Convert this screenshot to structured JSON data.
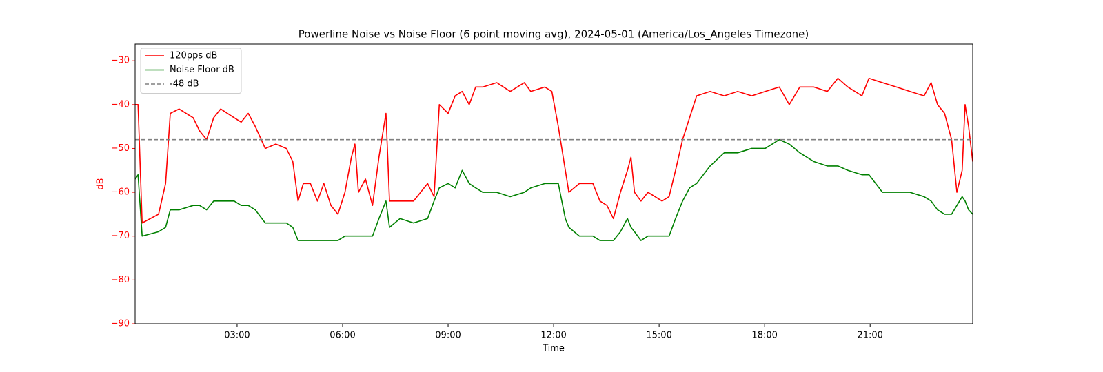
{
  "chart_data": {
    "type": "line",
    "title": "Powerline Noise vs Noise Floor (6 point moving avg), 2024-05-01 (America/Los_Angeles Timezone)",
    "x_label": "Time",
    "y_label": "dB",
    "x": [
      "00:06",
      "00:11",
      "00:18",
      "00:46",
      "00:58",
      "01:06",
      "01:21",
      "01:45",
      "01:56",
      "02:08",
      "02:20",
      "02:32",
      "02:55",
      "03:07",
      "03:19",
      "03:31",
      "03:48",
      "04:06",
      "04:24",
      "04:35",
      "04:44",
      "04:53",
      "05:05",
      "05:17",
      "05:28",
      "05:40",
      "05:52",
      "06:04",
      "06:15",
      "06:21",
      "06:27",
      "06:39",
      "06:51",
      "07:02",
      "07:14",
      "07:20",
      "07:38",
      "08:01",
      "08:25",
      "08:36",
      "08:45",
      "09:00",
      "09:12",
      "09:24",
      "09:36",
      "09:47",
      "09:59",
      "10:23",
      "10:46",
      "11:10",
      "11:21",
      "11:45",
      "11:57",
      "12:08",
      "12:20",
      "12:26",
      "12:44",
      "13:07",
      "13:19",
      "13:31",
      "13:42",
      "13:54",
      "14:06",
      "14:12",
      "14:18",
      "14:29",
      "14:41",
      "15:05",
      "15:17",
      "15:28",
      "15:40",
      "15:52",
      "16:04",
      "16:27",
      "16:51",
      "17:14",
      "17:38",
      "18:01",
      "18:25",
      "18:42",
      "19:00",
      "19:24",
      "19:47",
      "20:05",
      "20:22",
      "20:46",
      "20:58",
      "21:21",
      "21:45",
      "22:08",
      "22:32",
      "22:44",
      "22:55",
      "23:07",
      "23:19",
      "23:28",
      "23:37",
      "23:42",
      "23:48",
      "23:55"
    ],
    "series": [
      {
        "name": "120pps dB",
        "color": "#ff0000",
        "values": [
          -40,
          -40,
          -67,
          -65,
          -58,
          -42,
          -41,
          -43,
          -46,
          -48,
          -43,
          -41,
          -43,
          -44,
          -42,
          -45,
          -50,
          -49,
          -50,
          -53,
          -62,
          -58,
          -58,
          -62,
          -58,
          -63,
          -65,
          -60,
          -52,
          -49,
          -60,
          -57,
          -63,
          -52,
          -42,
          -62,
          -62,
          -62,
          -58,
          -61,
          -40,
          -42,
          -38,
          -37,
          -40,
          -36,
          -36,
          -35,
          -37,
          -35,
          -37,
          -36,
          -37,
          -45,
          -55,
          -60,
          -58,
          -58,
          -62,
          -63,
          -66,
          -60,
          -55,
          -52,
          -60,
          -62,
          -60,
          -62,
          -61,
          -55,
          -48,
          -43,
          -38,
          -37,
          -38,
          -37,
          -38,
          -37,
          -36,
          -40,
          -36,
          -36,
          -37,
          -34,
          -36,
          -38,
          -34,
          -35,
          -36,
          -37,
          -38,
          -35,
          -40,
          -42,
          -48,
          -60,
          -55,
          -40,
          -45,
          -53
        ]
      },
      {
        "name": "Noise Floor dB",
        "color": "#008000",
        "values": [
          -57,
          -56,
          -70,
          -69,
          -68,
          -64,
          -64,
          -63,
          -63,
          -64,
          -62,
          -62,
          -62,
          -63,
          -63,
          -64,
          -67,
          -67,
          -67,
          -68,
          -71,
          -71,
          -71,
          -71,
          -71,
          -71,
          -71,
          -70,
          -70,
          -70,
          -70,
          -70,
          -70,
          -66,
          -62,
          -68,
          -66,
          -67,
          -66,
          -62,
          -59,
          -58,
          -59,
          -55,
          -58,
          -59,
          -60,
          -60,
          -61,
          -60,
          -59,
          -58,
          -58,
          -58,
          -66,
          -68,
          -70,
          -70,
          -71,
          -71,
          -71,
          -69,
          -66,
          -68,
          -69,
          -71,
          -70,
          -70,
          -70,
          -66,
          -62,
          -59,
          -58,
          -54,
          -51,
          -51,
          -50,
          -50,
          -48,
          -49,
          -51,
          -53,
          -54,
          -54,
          -55,
          -56,
          -56,
          -60,
          -60,
          -60,
          -61,
          -62,
          -64,
          -65,
          -65,
          -63,
          -61,
          -62,
          -64,
          -65
        ]
      }
    ],
    "hlines": [
      {
        "name": "-48 dB",
        "value": -48,
        "color": "#808080",
        "dashed": true
      }
    ],
    "xlim": [
      "00:06",
      "23:55"
    ],
    "xticks": [
      "03:00",
      "06:00",
      "09:00",
      "12:00",
      "15:00",
      "18:00",
      "21:00"
    ],
    "ylim": [
      -90,
      -26.2
    ],
    "yticks": [
      {
        "value": -90,
        "label": "−90"
      },
      {
        "value": -80,
        "label": "−80"
      },
      {
        "value": -70,
        "label": "−70"
      },
      {
        "value": -60,
        "label": "−60"
      },
      {
        "value": -50,
        "label": "−50"
      },
      {
        "value": -40,
        "label": "−40"
      },
      {
        "value": -30,
        "label": "−30"
      }
    ],
    "y_axis_color": "#ff0000",
    "legend": "upper left",
    "grid": false
  }
}
